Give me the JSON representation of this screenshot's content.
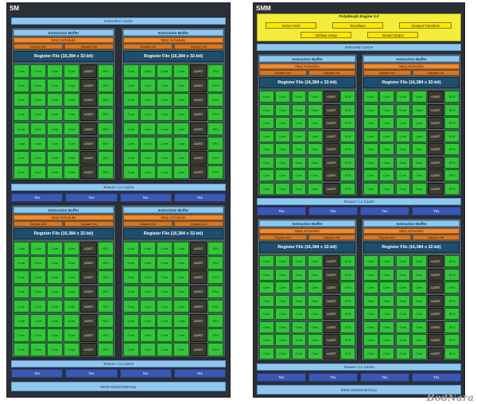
{
  "sm": {
    "title": "SM",
    "instruction_cache": "Instruction Cache",
    "texture_cache": "Texture / L1 Cache",
    "tex_label": "Tex",
    "shared_memory": "64KB Shared Memory"
  },
  "smm": {
    "title": "SMM",
    "polymorph_title": "PolyMorph Engine 3.0",
    "polymorph_row1": [
      "Vertex Fetch",
      "Tessellator",
      "Viewport Transform"
    ],
    "polymorph_row2": [
      "Attribute Setup",
      "Stream Output"
    ],
    "instruction_cache": "Instruction Cache",
    "texture_cache": "Texture / L1 Cache",
    "tex_label": "Tex",
    "shared_memory": "96KB Shared Memory"
  },
  "quad": {
    "instruction_buffer": "Instruction Buffer",
    "warp_scheduler": "Warp Scheduler",
    "dispatch_unit": "Dispatch Unit",
    "register_file": "Register File (16,384 x 32-bit)",
    "core": "Core",
    "ldst": "LD/ST",
    "sfu": "SFU"
  },
  "watermark": "BodNara",
  "colors": {
    "core_green": "#33c63a",
    "instruction_blue": "#8fc7ee",
    "scheduler_orange": "#f08a2c",
    "register_navy": "#1f4e6c",
    "tex_blue": "#3b56b3",
    "polymorph_yellow": "#f3ec3b"
  }
}
